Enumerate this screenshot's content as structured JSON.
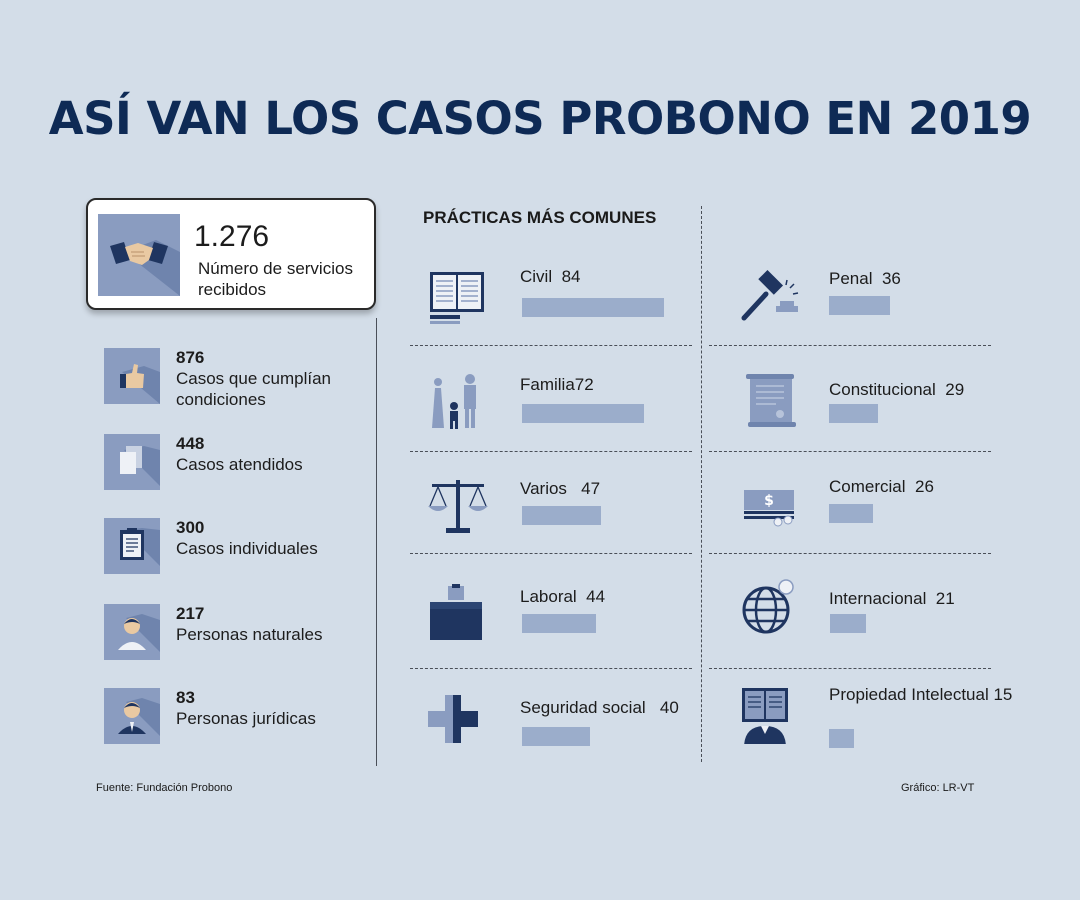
{
  "title": "ASÍ VAN LOS CASOS PROBONO EN 2019",
  "feature": {
    "value": "1.276",
    "label": "Número de servicios recibidos",
    "icon": "handshake-icon"
  },
  "stats": [
    {
      "value": "876",
      "label": "Casos que cumplían condiciones",
      "icon": "thumbs-up-icon"
    },
    {
      "value": "448",
      "label": "Casos atendidos",
      "icon": "documents-icon"
    },
    {
      "value": "300",
      "label": "Casos individuales",
      "icon": "clipboard-icon"
    },
    {
      "value": "217",
      "label": "Personas naturales",
      "icon": "person-icon"
    },
    {
      "value": "83",
      "label": "Personas jurídicas",
      "icon": "businessperson-icon"
    }
  ],
  "section_title": "PRÁCTICAS MÁS COMUNES",
  "chart_data": {
    "type": "bar",
    "title": "PRÁCTICAS MÁS COMUNES",
    "categories": [
      "Civil",
      "Familia",
      "Varios",
      "Laboral",
      "Seguridad social",
      "Penal",
      "Constitucional",
      "Comercial",
      "Internacional",
      "Propiedad Intelectual"
    ],
    "values": [
      84,
      72,
      47,
      44,
      40,
      36,
      29,
      26,
      21,
      15
    ],
    "icons": [
      "book-icon",
      "family-icon",
      "scales-icon",
      "briefcase-icon",
      "medical-cross-icon",
      "gavel-icon",
      "scroll-icon",
      "money-icon",
      "globe-icon",
      "intellectual-property-icon"
    ],
    "bar_color": "#9badcb"
  },
  "footer": {
    "source": "Fuente: Fundación Probono",
    "credit": "Gráfico: LR-VT"
  },
  "colors": {
    "background": "#d3dde8",
    "title": "#0e2a55",
    "icon_tile": "#8a9cc0",
    "icon_dark": "#1f3560",
    "bar": "#9badcb"
  }
}
